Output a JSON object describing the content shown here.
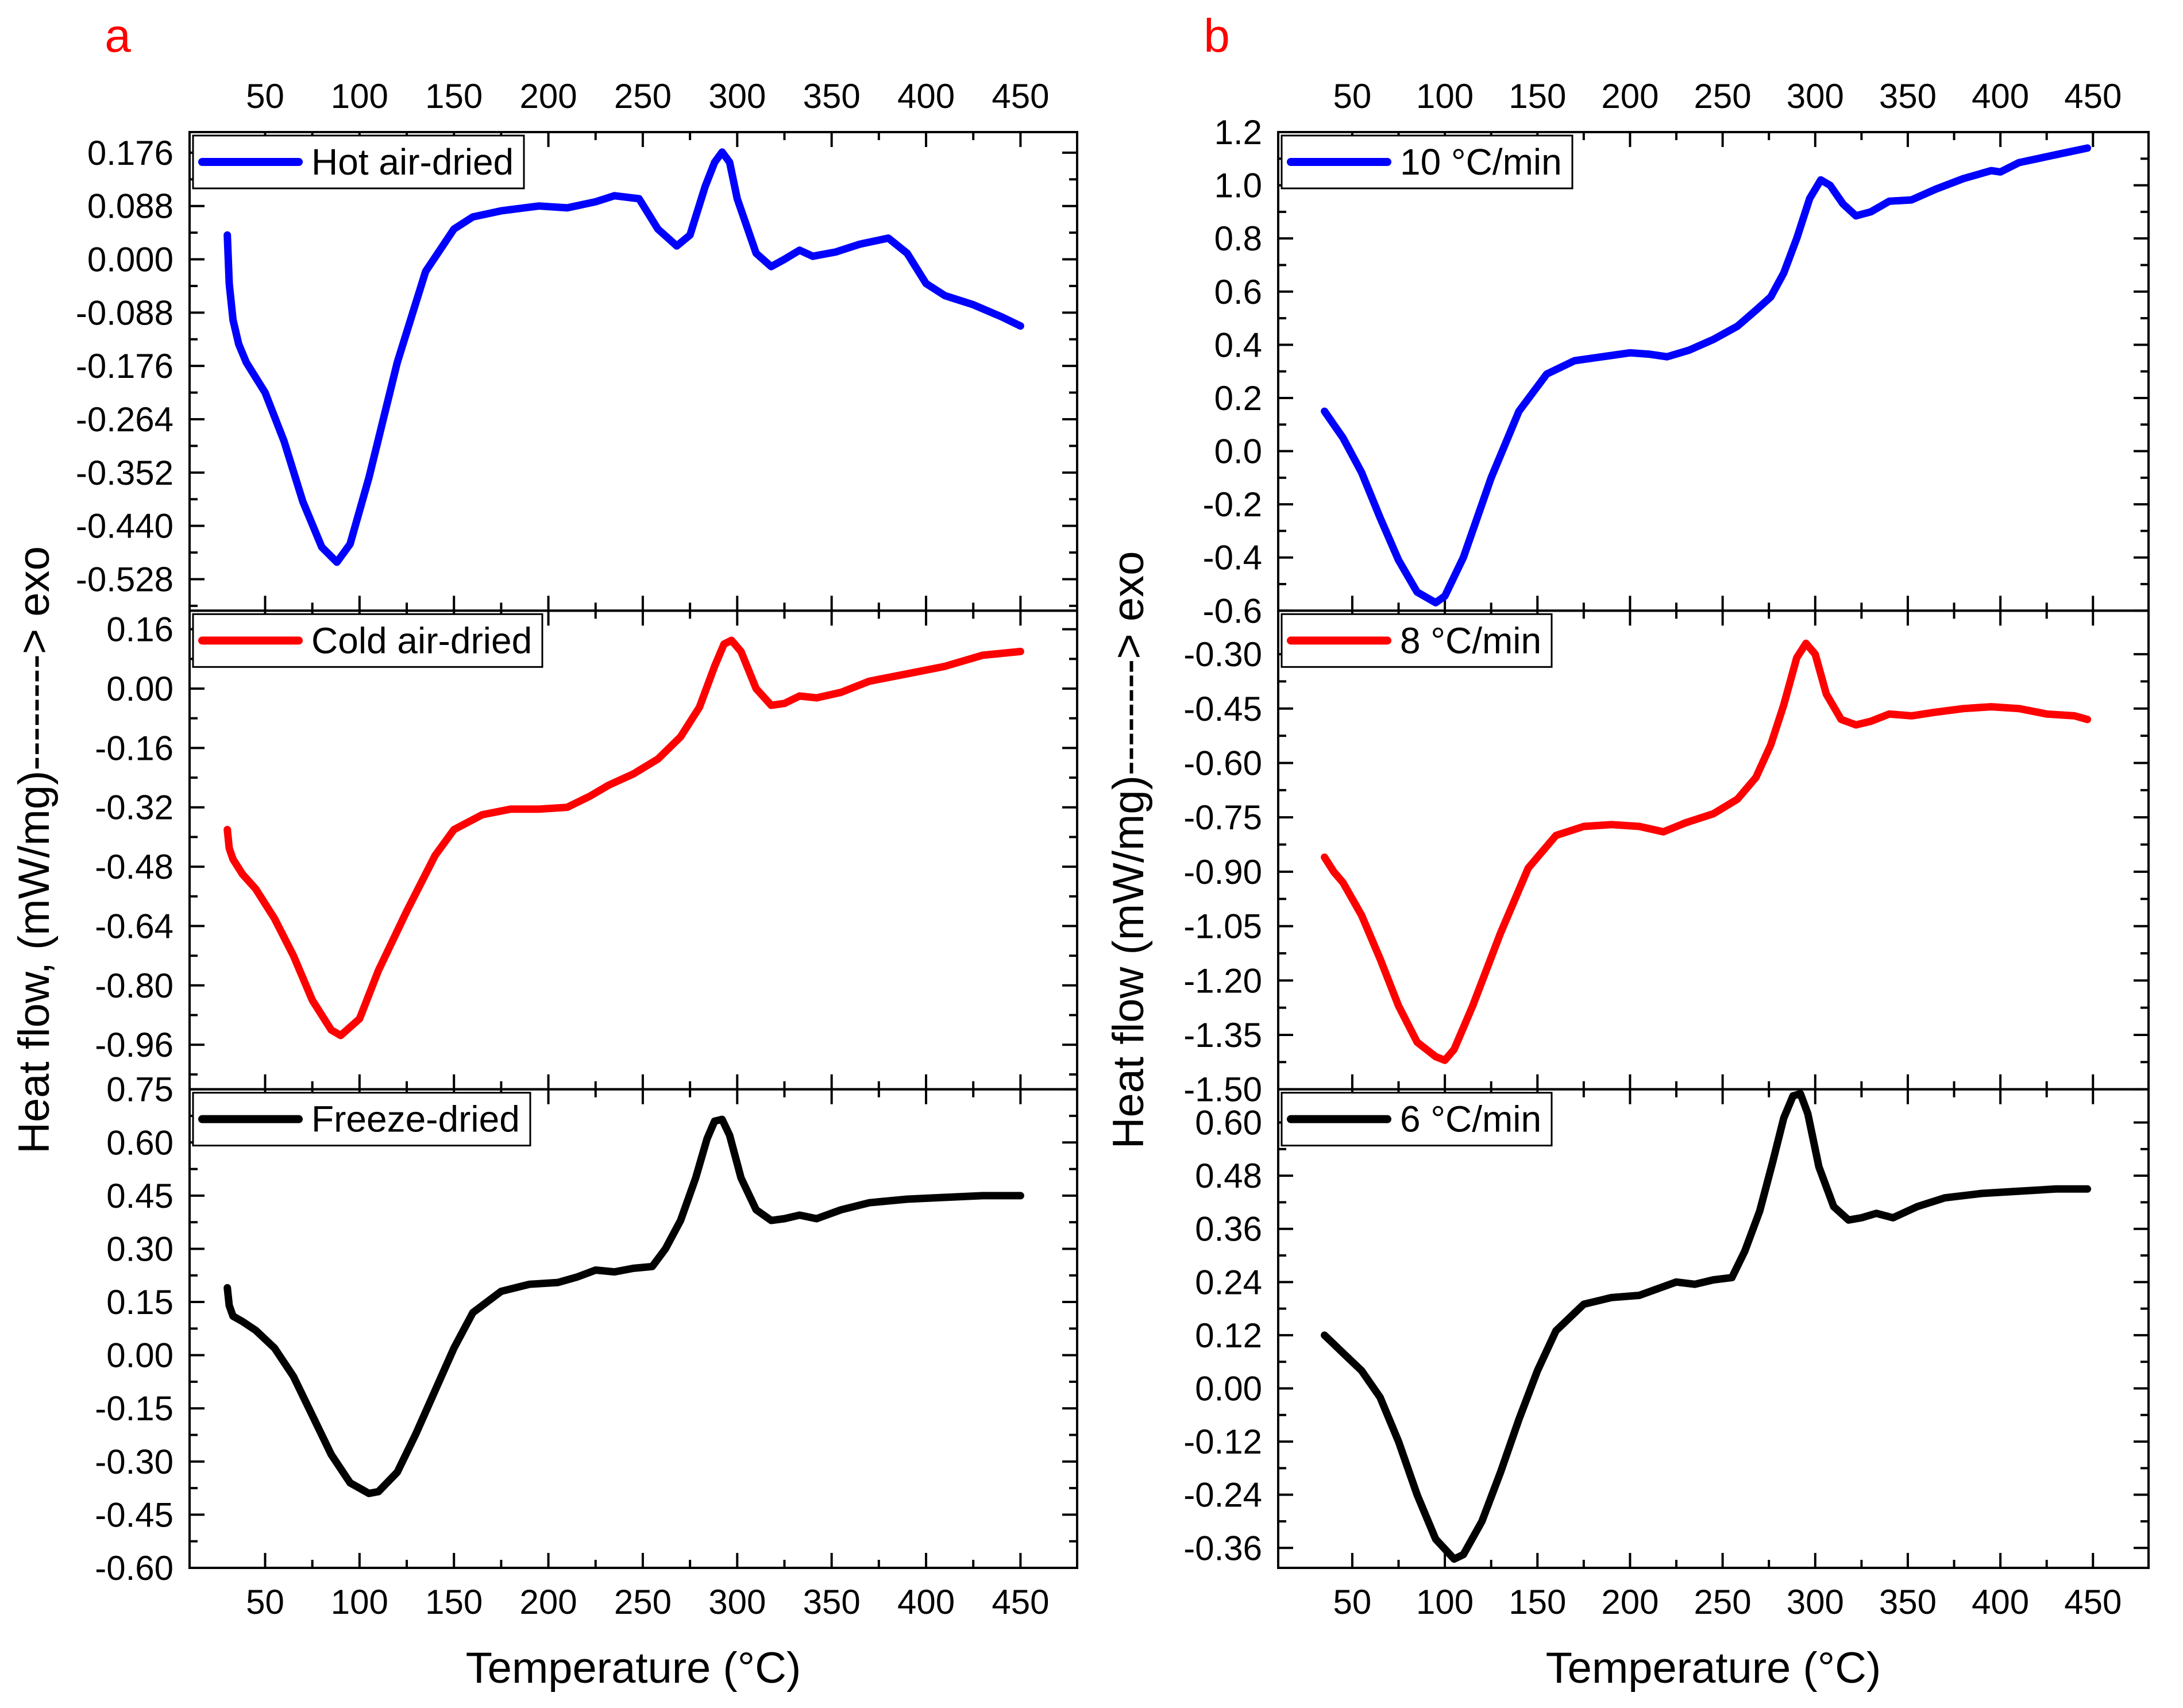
{
  "chart_data": {
    "type": "line",
    "shared": {
      "xlabel": "Temperature (°C)",
      "ylabel": "Heat flow, (mW/mg)--------> exo",
      "xlim": [
        10,
        480
      ],
      "x_ticks": [
        "50",
        "100",
        "150",
        "200",
        "250",
        "300",
        "350",
        "400",
        "450"
      ]
    },
    "panels": [
      {
        "id": "a",
        "letter": "a",
        "letter_color": "#ff0000",
        "xlabel": "Temperature (°C)",
        "ylabel": "Heat flow, (mW/mg)--------> exo",
        "subplots": [
          {
            "legend": "Hot air-dried",
            "color": "#0000ff",
            "ylim": [
              -0.58,
              0.21
            ],
            "y_ticks": [
              "0.176",
              "0.088",
              "0.000",
              "-0.088",
              "-0.176",
              "-0.264",
              "-0.352",
              "-0.440",
              "-0.528"
            ],
            "x": [
              30,
              31,
              33,
              36,
              40,
              50,
              60,
              70,
              80,
              88,
              95,
              105,
              120,
              135,
              150,
              160,
              175,
              195,
              210,
              225,
              235,
              248,
              258,
              268,
              275,
              283,
              288,
              292,
              296,
              300,
              310,
              318,
              325,
              333,
              340,
              352,
              365,
              380,
              390,
              400,
              410,
              425,
              440,
              450
            ],
            "y": [
              0.04,
              -0.04,
              -0.1,
              -0.14,
              -0.17,
              -0.22,
              -0.3,
              -0.4,
              -0.475,
              -0.5,
              -0.47,
              -0.36,
              -0.17,
              -0.02,
              0.05,
              0.07,
              0.08,
              0.088,
              0.085,
              0.095,
              0.105,
              0.1,
              0.05,
              0.022,
              0.04,
              0.12,
              0.16,
              0.177,
              0.16,
              0.1,
              0.01,
              -0.012,
              0.0,
              0.015,
              0.005,
              0.012,
              0.025,
              0.035,
              0.01,
              -0.04,
              -0.06,
              -0.075,
              -0.095,
              -0.11
            ]
          },
          {
            "legend": "Cold air-dried",
            "color": "#ff0000",
            "ylim": [
              -1.08,
              0.21
            ],
            "y_ticks": [
              "0.16",
              "0.00",
              "-0.16",
              "-0.32",
              "-0.48",
              "-0.64",
              "-0.80",
              "-0.96"
            ],
            "x": [
              30,
              31,
              33,
              38,
              45,
              55,
              65,
              75,
              85,
              90,
              100,
              110,
              125,
              140,
              150,
              165,
              180,
              195,
              210,
              222,
              232,
              245,
              258,
              270,
              280,
              288,
              293,
              297,
              302,
              310,
              318,
              325,
              333,
              342,
              355,
              370,
              390,
              410,
              430,
              450
            ],
            "y": [
              -0.38,
              -0.43,
              -0.46,
              -0.5,
              -0.54,
              -0.62,
              -0.72,
              -0.84,
              -0.92,
              -0.935,
              -0.89,
              -0.76,
              -0.6,
              -0.45,
              -0.38,
              -0.34,
              -0.325,
              -0.325,
              -0.32,
              -0.29,
              -0.26,
              -0.23,
              -0.19,
              -0.13,
              -0.05,
              0.06,
              0.12,
              0.13,
              0.1,
              0.0,
              -0.045,
              -0.04,
              -0.02,
              -0.025,
              -0.01,
              0.02,
              0.04,
              0.06,
              0.09,
              0.1
            ]
          },
          {
            "legend": "Freeze-dried",
            "color": "#000000",
            "ylim": [
              -0.6,
              0.75
            ],
            "y_ticks": [
              "0.75",
              "0.60",
              "0.45",
              "0.30",
              "0.15",
              "0.00",
              "-0.15",
              "-0.30",
              "-0.45",
              "-0.60"
            ],
            "x": [
              30,
              31,
              33,
              38,
              45,
              55,
              65,
              75,
              85,
              95,
              105,
              110,
              120,
              130,
              140,
              150,
              160,
              175,
              190,
              205,
              215,
              225,
              235,
              245,
              255,
              262,
              270,
              278,
              284,
              288,
              292,
              296,
              302,
              310,
              318,
              325,
              333,
              342,
              355,
              370,
              390,
              410,
              430,
              450
            ],
            "y": [
              0.19,
              0.14,
              0.11,
              0.095,
              0.07,
              0.02,
              -0.06,
              -0.17,
              -0.28,
              -0.36,
              -0.39,
              -0.385,
              -0.33,
              -0.22,
              -0.1,
              0.02,
              0.12,
              0.18,
              0.2,
              0.205,
              0.22,
              0.24,
              0.235,
              0.245,
              0.25,
              0.3,
              0.38,
              0.5,
              0.61,
              0.66,
              0.665,
              0.62,
              0.5,
              0.41,
              0.38,
              0.385,
              0.395,
              0.385,
              0.41,
              0.43,
              0.44,
              0.445,
              0.45,
              0.45
            ]
          }
        ]
      },
      {
        "id": "b",
        "letter": "b",
        "letter_color": "#ff0000",
        "xlabel": "Temperature (°C)",
        "ylabel": "Heat flow (mW/mg)--------> exo",
        "subplots": [
          {
            "legend": "10 °C/min",
            "color": "#0000ff",
            "ylim": [
              -0.6,
              1.2
            ],
            "y_ticks": [
              "1.2",
              "1.0",
              "0.8",
              "0.6",
              "0.4",
              "0.2",
              "0.0",
              "-0.2",
              "-0.4",
              "-0.6"
            ],
            "x": [
              35,
              40,
              45,
              55,
              65,
              75,
              85,
              95,
              100,
              110,
              125,
              140,
              155,
              170,
              185,
              200,
              210,
              220,
              232,
              245,
              258,
              268,
              276,
              283,
              290,
              297,
              303,
              308,
              315,
              322,
              330,
              340,
              352,
              365,
              380,
              395,
              400,
              410,
              430,
              447
            ],
            "y": [
              0.15,
              0.1,
              0.05,
              -0.08,
              -0.25,
              -0.41,
              -0.53,
              -0.57,
              -0.545,
              -0.4,
              -0.1,
              0.15,
              0.29,
              0.34,
              0.355,
              0.37,
              0.365,
              0.355,
              0.38,
              0.42,
              0.47,
              0.53,
              0.58,
              0.67,
              0.8,
              0.95,
              1.02,
              1.0,
              0.93,
              0.885,
              0.9,
              0.94,
              0.945,
              0.985,
              1.025,
              1.055,
              1.05,
              1.085,
              1.115,
              1.14
            ]
          },
          {
            "legend": "8 °C/min",
            "color": "#ff0000",
            "ylim": [
              -1.5,
              -0.18
            ],
            "y_ticks": [
              "-0.30",
              "-0.45",
              "-0.60",
              "-0.75",
              "-0.90",
              "-1.05",
              "-1.20",
              "-1.35",
              "-1.50"
            ],
            "x": [
              35,
              40,
              45,
              55,
              65,
              75,
              85,
              95,
              100,
              105,
              115,
              130,
              145,
              160,
              175,
              190,
              205,
              218,
              230,
              245,
              258,
              268,
              276,
              283,
              290,
              295,
              300,
              306,
              314,
              322,
              330,
              340,
              352,
              365,
              380,
              395,
              410,
              425,
              440,
              447
            ],
            "y": [
              -0.86,
              -0.9,
              -0.93,
              -1.02,
              -1.14,
              -1.27,
              -1.37,
              -1.41,
              -1.42,
              -1.39,
              -1.27,
              -1.07,
              -0.89,
              -0.8,
              -0.775,
              -0.77,
              -0.775,
              -0.79,
              -0.765,
              -0.74,
              -0.7,
              -0.64,
              -0.55,
              -0.44,
              -0.31,
              -0.27,
              -0.3,
              -0.41,
              -0.48,
              -0.495,
              -0.485,
              -0.465,
              -0.47,
              -0.46,
              -0.45,
              -0.445,
              -0.45,
              -0.465,
              -0.47,
              -0.48
            ]
          },
          {
            "legend": "6 °C/min",
            "color": "#000000",
            "ylim": [
              -0.405,
              0.675
            ],
            "y_ticks": [
              "0.60",
              "0.48",
              "0.36",
              "0.24",
              "0.12",
              "0.00",
              "-0.12",
              "-0.24",
              "-0.36"
            ],
            "x": [
              35,
              40,
              45,
              55,
              65,
              75,
              85,
              95,
              105,
              110,
              120,
              130,
              140,
              150,
              160,
              175,
              190,
              205,
              215,
              225,
              235,
              245,
              255,
              262,
              270,
              277,
              283,
              288,
              292,
              296,
              302,
              310,
              318,
              325,
              333,
              342,
              355,
              370,
              390,
              410,
              430,
              447
            ],
            "y": [
              0.12,
              0.1,
              0.08,
              0.04,
              -0.02,
              -0.12,
              -0.24,
              -0.34,
              -0.385,
              -0.375,
              -0.3,
              -0.19,
              -0.07,
              0.04,
              0.13,
              0.19,
              0.205,
              0.21,
              0.225,
              0.24,
              0.235,
              0.245,
              0.25,
              0.31,
              0.4,
              0.51,
              0.61,
              0.66,
              0.665,
              0.62,
              0.5,
              0.41,
              0.38,
              0.385,
              0.395,
              0.385,
              0.41,
              0.43,
              0.44,
              0.445,
              0.45,
              0.45
            ]
          }
        ]
      }
    ]
  }
}
